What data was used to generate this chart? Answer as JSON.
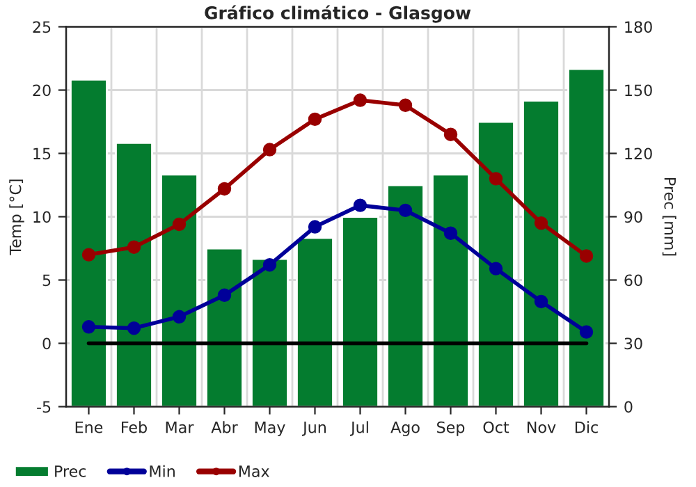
{
  "chart_data": {
    "type": "bar",
    "title": "Gráfico climático - Glasgow",
    "ylabel": "Temp [°C]",
    "y2label": "Prec [mm]",
    "categories": [
      "Ene",
      "Feb",
      "Mar",
      "Abr",
      "May",
      "Jun",
      "Jul",
      "Ago",
      "Sep",
      "Oct",
      "Nov",
      "Dic"
    ],
    "series": [
      {
        "name": "Prec",
        "axis": "y2",
        "color": "#047c2f",
        "values": [
          155,
          125,
          110,
          75,
          70,
          80,
          90,
          105,
          110,
          135,
          145,
          160
        ]
      },
      {
        "name": "Min",
        "type": "line",
        "axis": "y",
        "color": "#000099",
        "values": [
          1.3,
          1.2,
          2.1,
          3.8,
          6.2,
          9.2,
          10.9,
          10.5,
          8.7,
          5.9,
          3.3,
          0.9
        ]
      },
      {
        "name": "Max",
        "type": "line",
        "axis": "y",
        "color": "#990000",
        "values": [
          7.0,
          7.6,
          9.4,
          12.2,
          15.3,
          17.7,
          19.2,
          18.8,
          16.5,
          13.0,
          9.5,
          6.9
        ]
      }
    ],
    "ylim": [
      -5,
      25
    ],
    "yticks": [
      -5,
      0,
      5,
      10,
      15,
      20,
      25
    ],
    "y2lim": [
      0,
      180
    ],
    "y2ticks": [
      0,
      30,
      60,
      90,
      120,
      150,
      180
    ],
    "ref_lines": [
      {
        "axis": "y",
        "value": 0,
        "color": "#000000"
      }
    ],
    "grid": true,
    "legend": "bottom left",
    "marker": "circle",
    "line_style": "solid"
  }
}
